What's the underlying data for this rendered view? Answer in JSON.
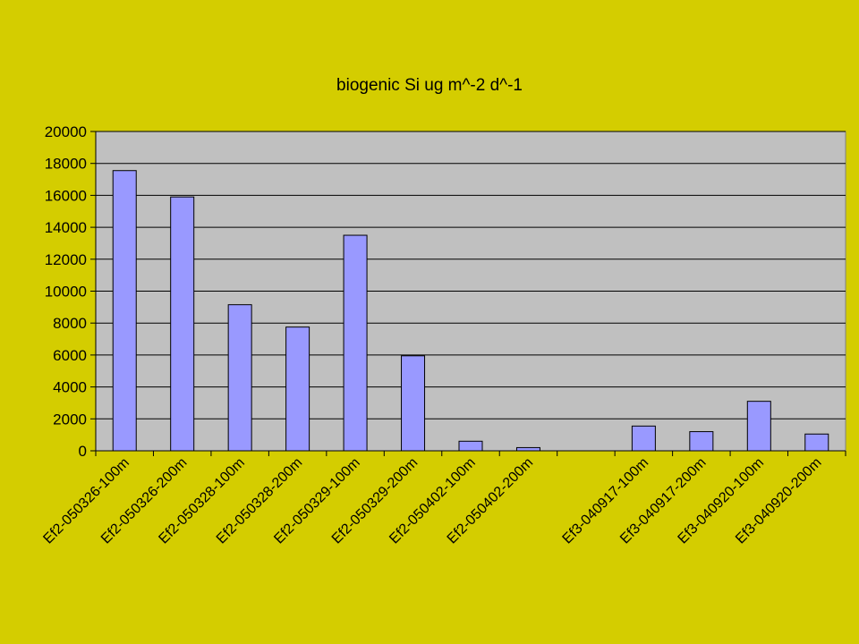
{
  "chart_data": {
    "type": "bar",
    "title": "biogenic Si ug m^-2 d^-1",
    "xlabel": "",
    "ylabel": "",
    "ylim": [
      0,
      20000
    ],
    "yticks": [
      0,
      2000,
      4000,
      6000,
      8000,
      10000,
      12000,
      14000,
      16000,
      18000,
      20000
    ],
    "grid": true,
    "legend": "none",
    "categories": [
      "Ef2-050326-100m",
      "Ef2-050326-200m",
      "Ef2-050328-100m",
      "Ef2-050328-200m",
      "Ef2-050329-100m",
      "Ef2-050329-200m",
      "Ef2-050402-100m",
      "Ef2-050402-200m",
      "",
      "Ef3-040917-100m",
      "Ef3-040917-200m",
      "Ef3-040920-100m",
      "Ef3-040920-200m"
    ],
    "values": [
      17550,
      15900,
      9150,
      7750,
      13500,
      5950,
      600,
      200,
      null,
      1550,
      1200,
      3100,
      1050
    ],
    "colors": {
      "background": "#d4cd00",
      "plot_area": "#c0c0c0",
      "bar_fill": "#9999ff",
      "bar_stroke": "#000000",
      "gridline": "#000000"
    }
  }
}
